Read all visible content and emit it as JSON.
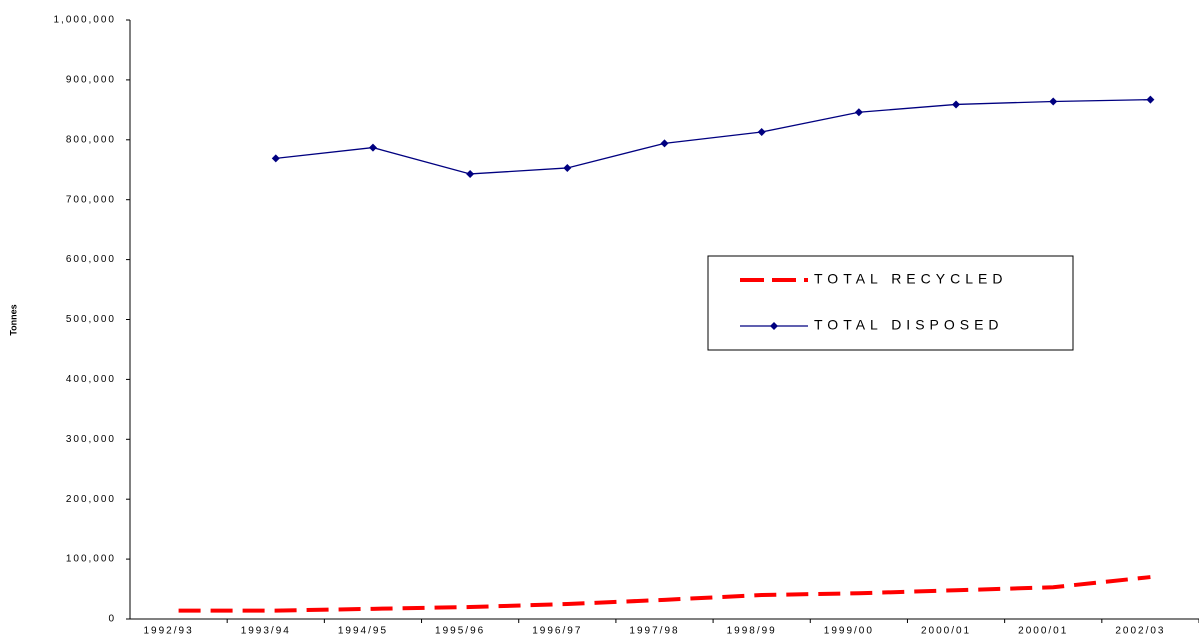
{
  "chart_data": {
    "type": "line",
    "y_label": "Tonnes",
    "categories": [
      "1992/93",
      "1993/94",
      "1994/95",
      "1995/96",
      "1996/97",
      "1997/98",
      "1998/99",
      "1999/00",
      "2000/01",
      "2000/01",
      "2002/03"
    ],
    "series": [
      {
        "name": "TOTAL RECYCLED",
        "color": "#ff0000",
        "style": "dashed",
        "marker": "none",
        "values": [
          14000,
          14000,
          17000,
          20000,
          25000,
          32000,
          40000,
          43000,
          48000,
          53000,
          70000
        ]
      },
      {
        "name": "TOTAL DISPOSED",
        "color": "#000080",
        "style": "solid",
        "marker": "diamond",
        "values": [
          null,
          769000,
          787000,
          743000,
          753000,
          794000,
          813000,
          846000,
          859000,
          864000,
          867000
        ]
      }
    ],
    "ylim": [
      0,
      1000000
    ],
    "yticks": [
      0,
      {
        "value": 100000,
        "label": "100,000"
      },
      {
        "value": 200000,
        "label": "200,000"
      },
      {
        "value": 300000,
        "label": "300,000"
      },
      {
        "value": 400000,
        "label": "400,000"
      },
      {
        "value": 500000,
        "label": "500,000"
      },
      {
        "value": 600000,
        "label": "600,000"
      },
      {
        "value": 700000,
        "label": "700,000"
      },
      {
        "value": 800000,
        "label": "800,000"
      },
      {
        "value": 900000,
        "label": "900,000"
      },
      {
        "value": 1000000,
        "label": "1,000,000"
      }
    ],
    "grid": false,
    "legend": "center-right"
  }
}
